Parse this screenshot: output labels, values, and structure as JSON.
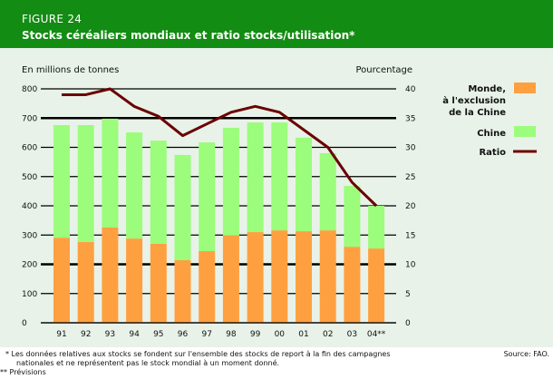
{
  "header": {
    "figure_number": "FIGURE 24",
    "title": "Stocks céréaliers mondiaux et ratio stocks/utilisation*"
  },
  "colors": {
    "header_bg": "#128c12",
    "panel_bg": "#e8f2e8",
    "monde": "#ffa040",
    "chine": "#9cfc7c",
    "ratio": "#6b0000"
  },
  "chart_data": {
    "type": "bar",
    "stacked": true,
    "title": "Stocks céréaliers mondiaux et ratio stocks/utilisation*",
    "categories": [
      "91",
      "92",
      "93",
      "94",
      "95",
      "96",
      "97",
      "98",
      "99",
      "00",
      "01",
      "02",
      "03",
      "04**"
    ],
    "ylabel": "En millions de tonnes",
    "y2label": "Pourcentage",
    "ylim": [
      0,
      800
    ],
    "y2lim": [
      0,
      40
    ],
    "yticks": [
      "0",
      "100",
      "200",
      "300",
      "400",
      "500",
      "600",
      "700",
      "800"
    ],
    "y2ticks": [
      "0",
      "5",
      "10",
      "15",
      "20",
      "25",
      "30",
      "35",
      "40"
    ],
    "grid": true,
    "legend_position": "right",
    "series": [
      {
        "name": "Monde, à l'exclusion de la Chine",
        "legend_lines": [
          "Monde,",
          "à l'exclusion",
          "de la Chine"
        ],
        "type": "bar",
        "axis": "left",
        "values": [
          291,
          276,
          326,
          288,
          270,
          214,
          245,
          298,
          310,
          316,
          313,
          316,
          260,
          254
        ]
      },
      {
        "name": "Chine",
        "legend_lines": [
          "Chine"
        ],
        "type": "bar",
        "axis": "left",
        "values": [
          385,
          400,
          372,
          363,
          353,
          360,
          372,
          369,
          375,
          369,
          320,
          264,
          208,
          146
        ]
      },
      {
        "name": "Ratio",
        "legend_lines": [
          "Ratio"
        ],
        "type": "line",
        "axis": "right",
        "values": [
          39,
          39,
          40,
          37,
          35.3,
          32,
          34,
          36,
          37,
          36,
          33,
          30,
          24,
          20
        ]
      }
    ]
  },
  "footer": {
    "note1_line1": "* Les données relatives aux stocks se fondent sur l'ensemble des stocks de report à la fin des campagnes",
    "note1_line2": "nationales et ne représentent pas le stock mondial à un moment donné.",
    "note2": "** Prévisions",
    "source_label": "Source:",
    "source_value": "FAO."
  }
}
